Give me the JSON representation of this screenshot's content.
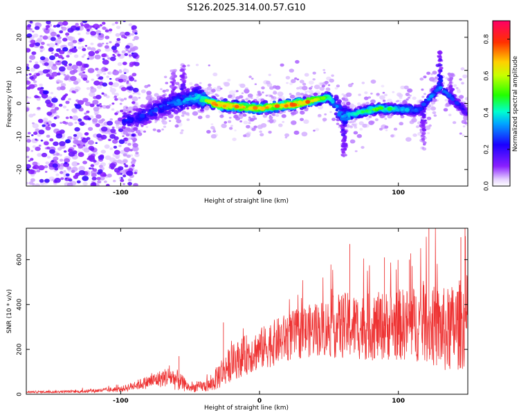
{
  "title": "S126.2025.314.00.57.G10",
  "chart_data": [
    {
      "type": "heatmap",
      "title": "S126.2025.314.00.57.G10",
      "xlabel": "Height of straight line (km)",
      "ylabel": "Frequency (Hz)",
      "xlim": [
        -168,
        150
      ],
      "ylim": [
        -25,
        25
      ],
      "x_ticks": [
        -100,
        0,
        100
      ],
      "y_ticks": [
        -20,
        -10,
        0,
        10,
        20
      ],
      "colorbar": {
        "label": "Normalized spectral amplitude",
        "range": [
          0.0,
          0.9
        ],
        "ticks": [
          0.0,
          0.2,
          0.4,
          0.6,
          0.8
        ],
        "colormap": "rainbow (white-violet-blue-cyan-green-yellow-red)",
        "colors": [
          "#ffffff",
          "#7f00ff",
          "#0000ff",
          "#00ffff",
          "#00ff00",
          "#ffff00",
          "#ff8000",
          "#ff0000",
          "#ff0066"
        ]
      },
      "ridge": [
        {
          "x": -90,
          "freq": -5,
          "amp": 0.25
        },
        {
          "x": -70,
          "freq": -1,
          "amp": 0.3
        },
        {
          "x": -45,
          "freq": 2,
          "amp": 0.4
        },
        {
          "x": -30,
          "freq": -0.5,
          "amp": 0.8
        },
        {
          "x": 0,
          "freq": -1.5,
          "amp": 0.7
        },
        {
          "x": 30,
          "freq": 0,
          "amp": 0.85
        },
        {
          "x": 50,
          "freq": 2,
          "amp": 0.45
        },
        {
          "x": 60,
          "freq": -4,
          "amp": 0.35
        },
        {
          "x": 85,
          "freq": -1.5,
          "amp": 0.55
        },
        {
          "x": 115,
          "freq": -2,
          "amp": 0.3
        },
        {
          "x": 130,
          "freq": 5,
          "amp": 0.35
        },
        {
          "x": 150,
          "freq": -3,
          "amp": 0.2
        }
      ]
    },
    {
      "type": "line",
      "title": "",
      "xlabel": "Height of straight line (km)",
      "ylabel": "SNR (10 * v/v)",
      "xlim": [
        -168,
        150
      ],
      "ylim": [
        0,
        740
      ],
      "x_ticks": [
        -100,
        0,
        100
      ],
      "y_ticks": [
        0,
        200,
        400,
        600
      ],
      "color": "#ee3333",
      "envelope": {
        "x": [
          -168,
          -130,
          -100,
          -80,
          -65,
          -60,
          -50,
          -35,
          -28,
          -20,
          -10,
          0,
          20,
          40,
          60,
          80,
          100,
          120,
          135,
          150
        ],
        "mean": [
          10,
          12,
          22,
          55,
          80,
          65,
          28,
          40,
          95,
          140,
          175,
          200,
          255,
          290,
          305,
          300,
          310,
          315,
          280,
          330
        ],
        "spread": [
          5,
          6,
          12,
          30,
          45,
          50,
          18,
          30,
          70,
          80,
          90,
          95,
          110,
          120,
          150,
          150,
          160,
          175,
          195,
          210
        ]
      },
      "spikes": [
        {
          "x": -58,
          "y": 170
        },
        {
          "x": -26,
          "y": 320
        },
        {
          "x": 65,
          "y": 670
        },
        {
          "x": 90,
          "y": 610
        },
        {
          "x": 108,
          "y": 600
        },
        {
          "x": 122,
          "y": 740
        },
        {
          "x": 145,
          "y": 700
        },
        {
          "x": 148,
          "y": 740
        }
      ]
    }
  ]
}
